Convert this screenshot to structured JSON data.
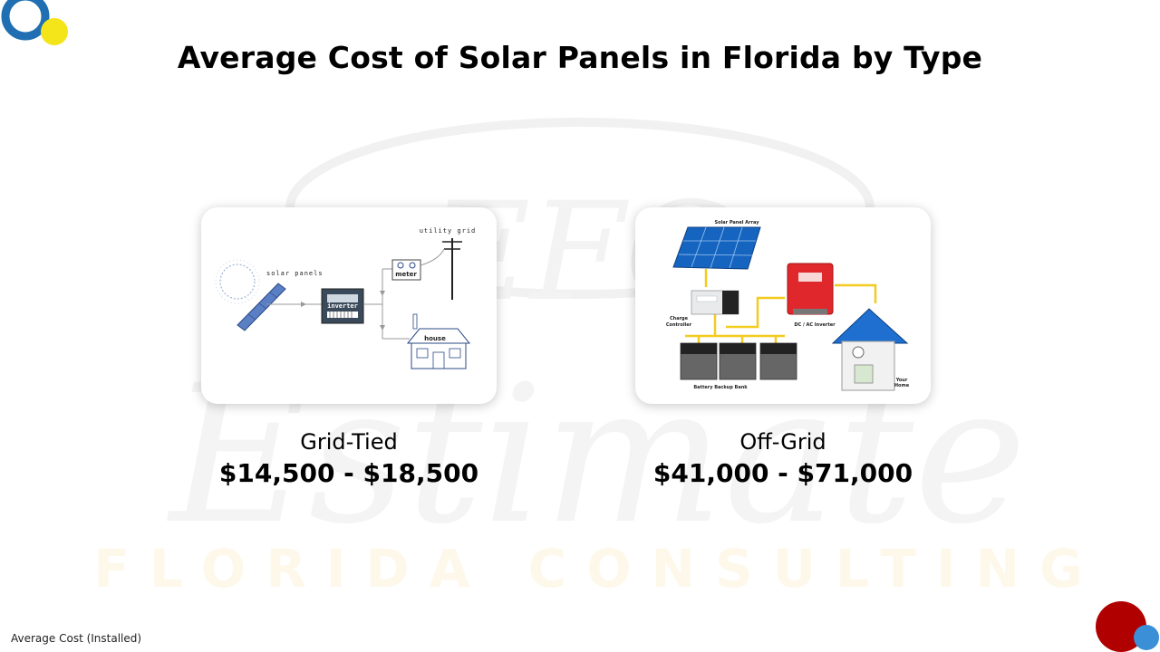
{
  "title": "Average Cost of Solar Panels in Florida by Type",
  "footer": "Average Cost (Installed)",
  "watermark": {
    "monogram": "EFC",
    "script_word": "Estimate",
    "caption": "FLORIDA CONSULTING"
  },
  "colors": {
    "logo_blue": "#1f6fb2",
    "logo_yellow": "#f3e51a",
    "logo_red": "#b00000",
    "logo_light_blue": "#3a8fd6",
    "diagram_yellow": "#f2cc1f",
    "panel_blue": "#1565c0"
  },
  "cards": [
    {
      "type_label": "Grid-Tied",
      "price": "$14,500 - $18,500",
      "diagram": {
        "solar_panels": "solar panels",
        "inverter": "inverter",
        "meter": "meter",
        "utility_grid": "utility grid",
        "house": "house"
      }
    },
    {
      "type_label": "Off-Grid",
      "price": "$41,000 - $71,000",
      "diagram": {
        "array": "Solar Panel Array",
        "charge_line1": "Charge",
        "charge_line2": "Controller",
        "inverter": "DC / AC Inverter",
        "battery": "Battery Backup Bank",
        "home_line1": "Your",
        "home_line2": "Home"
      }
    }
  ]
}
